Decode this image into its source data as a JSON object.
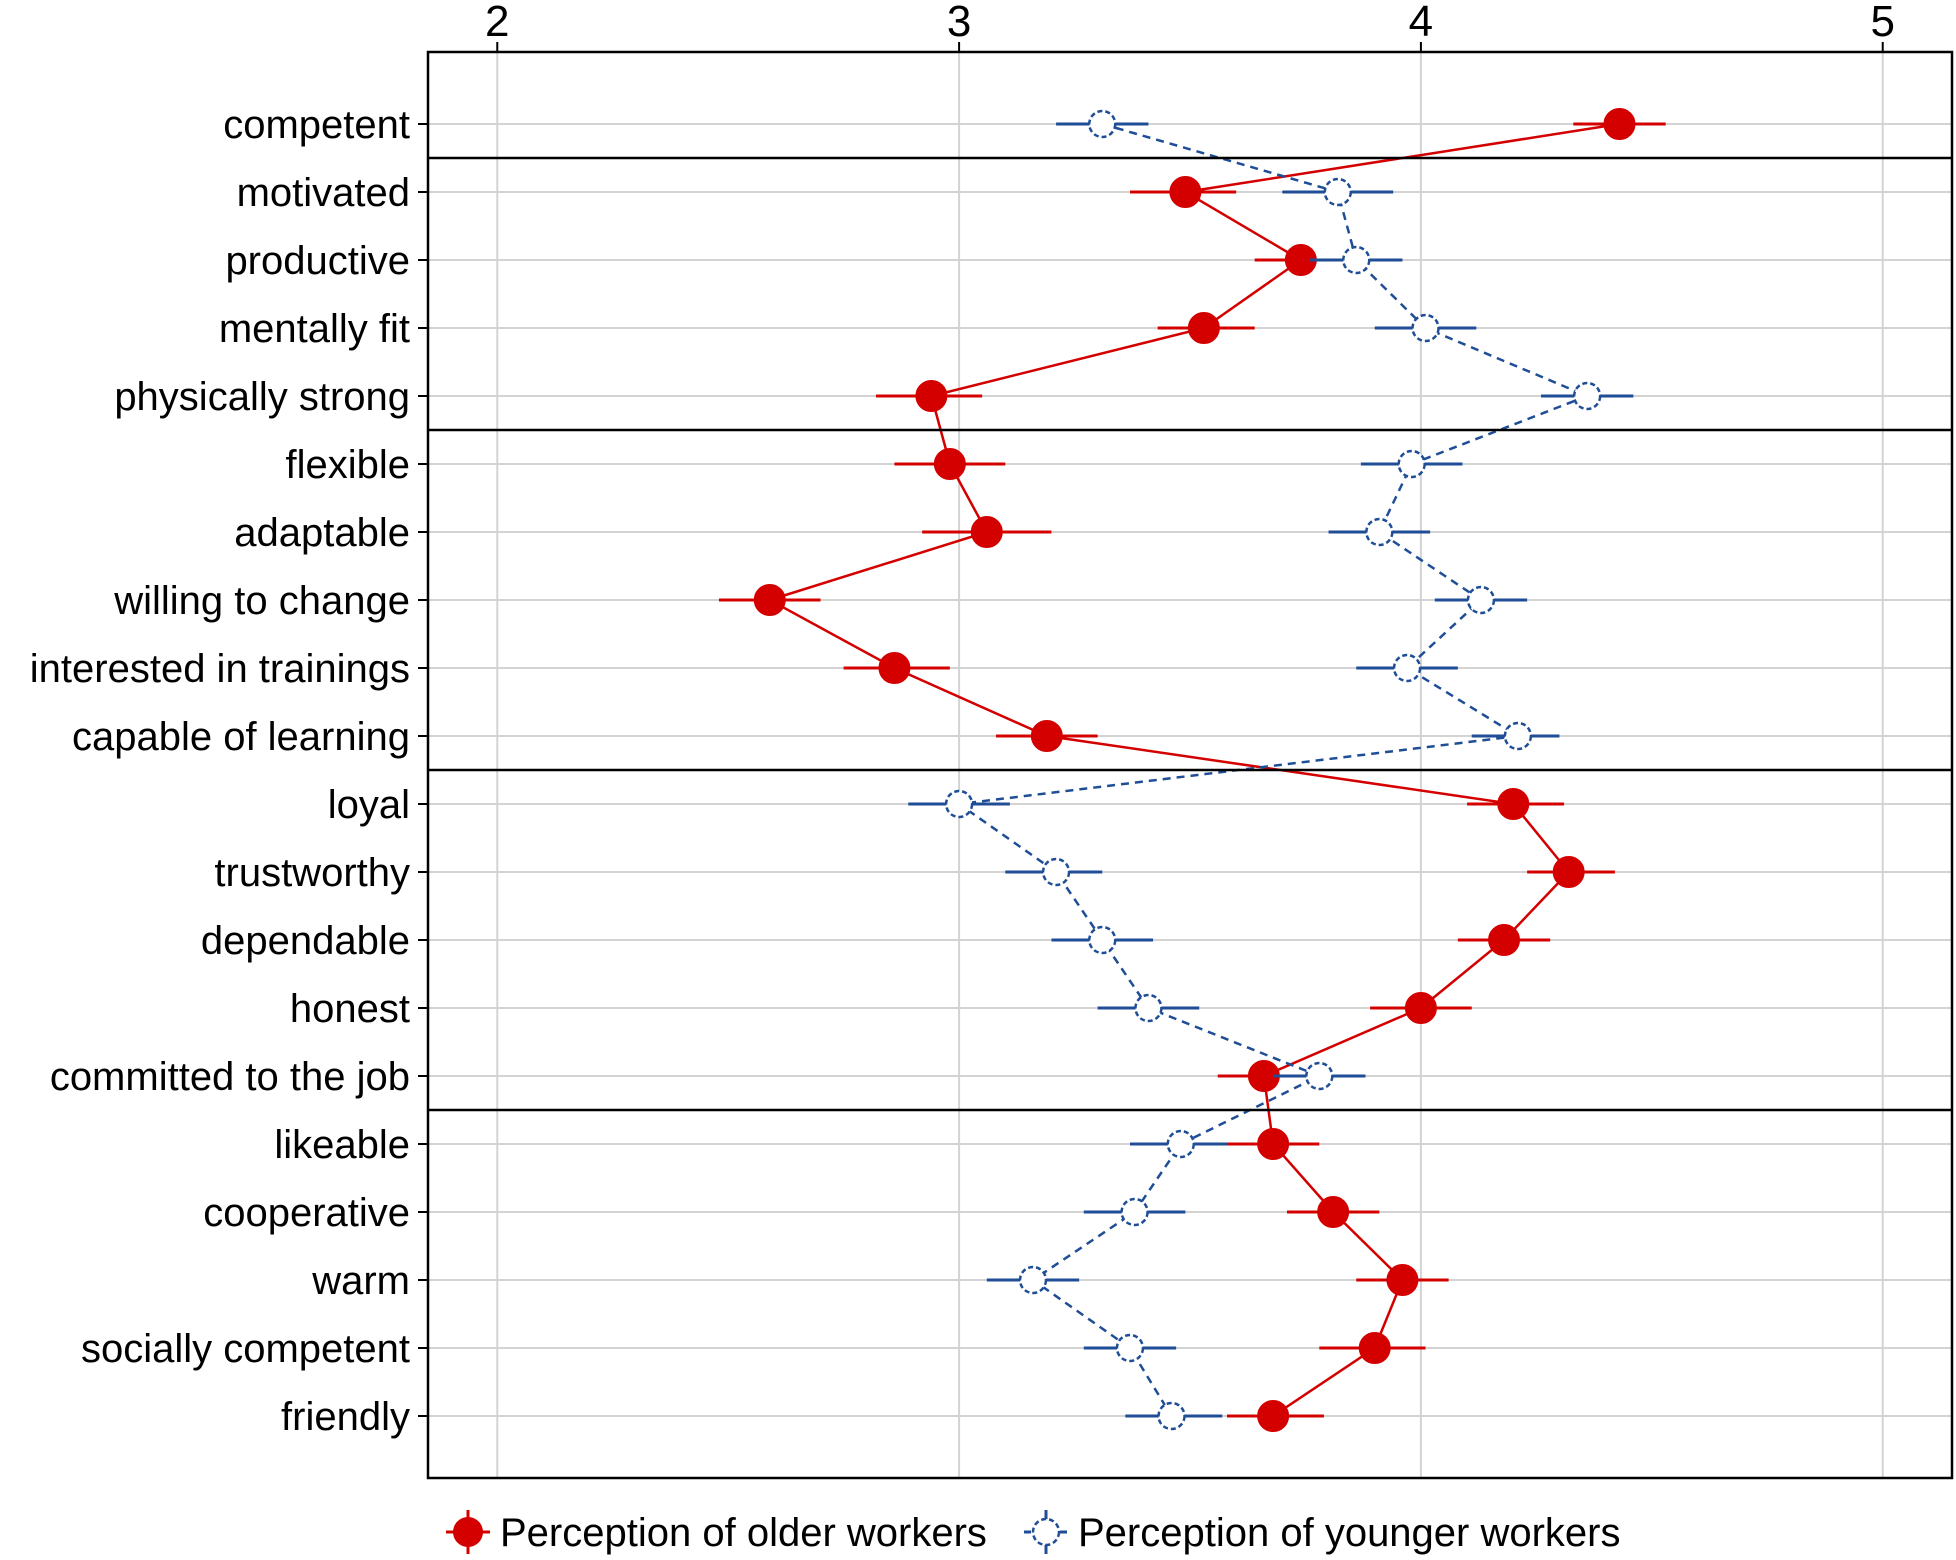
{
  "chart_data": {
    "type": "scatter",
    "title": "",
    "xlabel": "",
    "ylabel": "",
    "xlim": [
      1.85,
      5.15
    ],
    "x_ticks": [
      2,
      3,
      4,
      5
    ],
    "x_tick_labels": [
      "2",
      "3",
      "4",
      "5"
    ],
    "grid": true,
    "legend_position": "bottom",
    "categories": [
      "competent",
      "motivated",
      "productive",
      "mentally fit",
      "physically strong",
      "flexible",
      "adaptable",
      "willing to change",
      "interested in trainings",
      "capable of learning",
      "loyal",
      "trustworthy",
      "dependable",
      "honest",
      "committed to the job",
      "likeable",
      "cooperative",
      "warm",
      "socially competent",
      "friendly"
    ],
    "group_breaks_after": [
      0,
      4,
      9,
      14
    ],
    "series": [
      {
        "name": "Perception of older workers",
        "color": "#d40000",
        "marker": "filled-circle",
        "line": "solid",
        "values": [
          4.43,
          3.49,
          3.74,
          3.53,
          2.94,
          2.98,
          3.06,
          2.59,
          2.86,
          3.19,
          4.2,
          4.32,
          4.18,
          4.0,
          3.66,
          3.68,
          3.81,
          3.96,
          3.9,
          3.68
        ],
        "ci_low": [
          4.33,
          3.37,
          3.64,
          3.43,
          2.82,
          2.86,
          2.92,
          2.48,
          2.75,
          3.08,
          4.1,
          4.23,
          4.08,
          3.89,
          3.56,
          3.58,
          3.71,
          3.86,
          3.78,
          3.58
        ],
        "ci_high": [
          4.53,
          3.6,
          3.84,
          3.64,
          3.05,
          3.1,
          3.2,
          2.7,
          2.98,
          3.3,
          4.31,
          4.42,
          4.28,
          4.11,
          3.76,
          3.78,
          3.91,
          4.06,
          4.01,
          3.79
        ]
      },
      {
        "name": "Perception of younger workers",
        "color": "#1f4e96",
        "marker": "open-circle",
        "line": "dashed",
        "values": [
          3.31,
          3.82,
          3.86,
          4.01,
          4.36,
          3.98,
          3.91,
          4.13,
          3.97,
          4.21,
          3.0,
          3.21,
          3.31,
          3.41,
          3.78,
          3.48,
          3.38,
          3.16,
          3.37,
          3.46
        ],
        "ci_low": [
          3.21,
          3.7,
          3.76,
          3.9,
          4.26,
          3.87,
          3.8,
          4.03,
          3.86,
          4.11,
          2.89,
          3.1,
          3.2,
          3.3,
          3.68,
          3.37,
          3.27,
          3.06,
          3.27,
          3.36
        ],
        "ci_high": [
          3.41,
          3.94,
          3.96,
          4.12,
          4.46,
          4.09,
          4.02,
          4.23,
          4.08,
          4.3,
          3.11,
          3.31,
          3.42,
          3.52,
          3.88,
          3.58,
          3.49,
          3.26,
          3.47,
          3.57
        ]
      }
    ]
  }
}
